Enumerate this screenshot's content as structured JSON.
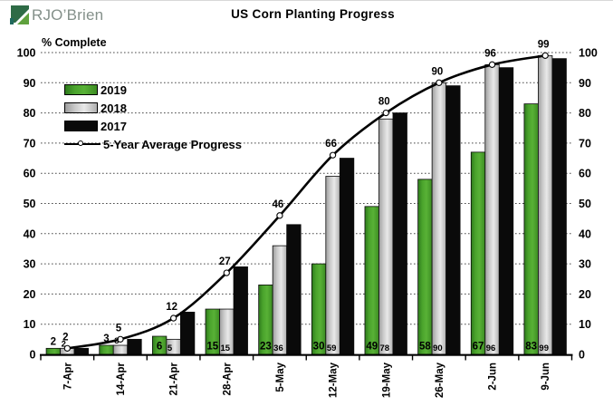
{
  "logo": {
    "text": "RJO’Brien"
  },
  "title": "US Corn Planting Progress",
  "y_axis_title": "% Complete",
  "legend": {
    "items": [
      {
        "label": "2019"
      },
      {
        "label": "2018"
      },
      {
        "label": "2017"
      },
      {
        "label": "5-Year Average Progress"
      }
    ]
  },
  "colors": {
    "bar_2019": "#4aa32c",
    "bar_2019_dark": "#2e7a1c",
    "bar_2019_light": "#58b136",
    "bar_2018": "#c9c9c9",
    "bar_2018_dark": "#9d9d9d",
    "bar_2018_light": "#e9e9e9",
    "bar_2017": "#0a0a0a",
    "avg_line": "#000000",
    "marker_fill": "#ffffff",
    "grid": "#4a4a4a",
    "axis": "#000000",
    "text": "#000000",
    "logo_green_dark": "#2e6b46",
    "logo_green": "#5fa13d",
    "logo_teal": "#20695d",
    "logo_text": "#84908a"
  },
  "chart_data": {
    "type": "bar",
    "title": "US Corn Planting Progress",
    "ylabel": "% Complete",
    "xlabel": "",
    "ylim": [
      0,
      100
    ],
    "y_ticks": [
      0,
      10,
      20,
      30,
      40,
      50,
      60,
      70,
      80,
      90,
      100
    ],
    "y_axis_sides": "both",
    "grid": "horizontal-dotted",
    "legend_position": "top-left-inside",
    "categories": [
      "7-Apr",
      "14-Apr",
      "21-Apr",
      "28-Apr",
      "5-May",
      "12-May",
      "19-May",
      "26-May",
      "2-Jun",
      "9-Jun"
    ],
    "series": [
      {
        "name": "2019",
        "type": "bar",
        "color": "#4aa32c",
        "values": [
          2,
          3,
          6,
          15,
          23,
          30,
          49,
          58,
          67,
          83
        ],
        "labels_shown": true
      },
      {
        "name": "2018",
        "type": "bar",
        "color": "#c9c9c9",
        "values": [
          2,
          3,
          5,
          15,
          36,
          59,
          78,
          90,
          96,
          99
        ],
        "labels_shown": true
      },
      {
        "name": "2017",
        "type": "bar",
        "color": "#0a0a0a",
        "values": [
          2,
          5,
          14,
          29,
          43,
          65,
          80,
          89,
          95,
          98
        ],
        "labels_shown": false
      },
      {
        "name": "5-Year Average Progress",
        "type": "line",
        "color": "#000000",
        "marker": "open-circle",
        "values": [
          2,
          5,
          12,
          27,
          46,
          66,
          80,
          90,
          96,
          99
        ],
        "labels_shown": true
      }
    ]
  }
}
